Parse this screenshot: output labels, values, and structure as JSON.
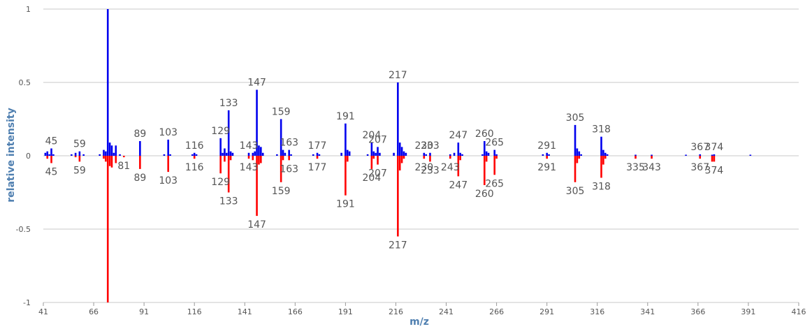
{
  "chart_data": {
    "type": "bar",
    "title": "",
    "xlabel": "m/z",
    "ylabel": "relative intensity",
    "xlim": [
      41,
      416
    ],
    "ylim": [
      -1,
      1
    ],
    "x_ticks": [
      41,
      66,
      91,
      116,
      141,
      166,
      191,
      216,
      241,
      266,
      291,
      316,
      341,
      366,
      391,
      416
    ],
    "y_ticks": [
      {
        "value": 1,
        "label": "1"
      },
      {
        "value": 0.5,
        "label": "0.5"
      },
      {
        "value": 0,
        "label": "0"
      },
      {
        "value": -0.5,
        "label": "-0.5"
      },
      {
        "value": -1,
        "label": "-1"
      }
    ],
    "grid": true,
    "colors": {
      "top": "#0000ee",
      "bottom": "#ff0000",
      "grid": "#c8c8c8",
      "axis_title": "#4f7fb0"
    },
    "series": [
      {
        "direction": "up",
        "peaks": [
          {
            "mz": 42,
            "v": 0.02
          },
          {
            "mz": 43,
            "v": 0.03
          },
          {
            "mz": 44,
            "v": 0.01
          },
          {
            "mz": 45,
            "v": 0.05
          },
          {
            "mz": 46,
            "v": 0.01
          },
          {
            "mz": 55,
            "v": 0.01
          },
          {
            "mz": 57,
            "v": 0.02
          },
          {
            "mz": 59,
            "v": 0.03
          },
          {
            "mz": 61,
            "v": 0.01
          },
          {
            "mz": 69,
            "v": 0.01
          },
          {
            "mz": 71,
            "v": 0.04
          },
          {
            "mz": 72,
            "v": 0.03
          },
          {
            "mz": 73,
            "v": 1.0
          },
          {
            "mz": 74,
            "v": 0.09
          },
          {
            "mz": 75,
            "v": 0.07
          },
          {
            "mz": 76,
            "v": 0.02
          },
          {
            "mz": 77,
            "v": 0.07
          },
          {
            "mz": 79,
            "v": 0.01
          },
          {
            "mz": 89,
            "v": 0.1
          },
          {
            "mz": 101,
            "v": 0.01
          },
          {
            "mz": 103,
            "v": 0.11
          },
          {
            "mz": 104,
            "v": 0.01
          },
          {
            "mz": 115,
            "v": 0.01
          },
          {
            "mz": 116,
            "v": 0.02
          },
          {
            "mz": 117,
            "v": 0.01
          },
          {
            "mz": 129,
            "v": 0.12
          },
          {
            "mz": 130,
            "v": 0.02
          },
          {
            "mz": 131,
            "v": 0.05
          },
          {
            "mz": 132,
            "v": 0.02
          },
          {
            "mz": 133,
            "v": 0.31
          },
          {
            "mz": 134,
            "v": 0.03
          },
          {
            "mz": 135,
            "v": 0.02
          },
          {
            "mz": 143,
            "v": 0.02
          },
          {
            "mz": 145,
            "v": 0.02
          },
          {
            "mz": 146,
            "v": 0.03
          },
          {
            "mz": 147,
            "v": 0.45
          },
          {
            "mz": 148,
            "v": 0.07
          },
          {
            "mz": 149,
            "v": 0.06
          },
          {
            "mz": 150,
            "v": 0.02
          },
          {
            "mz": 157,
            "v": 0.01
          },
          {
            "mz": 159,
            "v": 0.25
          },
          {
            "mz": 160,
            "v": 0.04
          },
          {
            "mz": 161,
            "v": 0.02
          },
          {
            "mz": 163,
            "v": 0.04
          },
          {
            "mz": 164,
            "v": 0.01
          },
          {
            "mz": 175,
            "v": 0.01
          },
          {
            "mz": 177,
            "v": 0.02
          },
          {
            "mz": 178,
            "v": 0.01
          },
          {
            "mz": 189,
            "v": 0.02
          },
          {
            "mz": 191,
            "v": 0.22
          },
          {
            "mz": 192,
            "v": 0.04
          },
          {
            "mz": 193,
            "v": 0.03
          },
          {
            "mz": 202,
            "v": 0.01
          },
          {
            "mz": 204,
            "v": 0.09
          },
          {
            "mz": 205,
            "v": 0.03
          },
          {
            "mz": 206,
            "v": 0.02
          },
          {
            "mz": 207,
            "v": 0.06
          },
          {
            "mz": 208,
            "v": 0.02
          },
          {
            "mz": 215,
            "v": 0.02
          },
          {
            "mz": 217,
            "v": 0.5
          },
          {
            "mz": 218,
            "v": 0.09
          },
          {
            "mz": 219,
            "v": 0.06
          },
          {
            "mz": 220,
            "v": 0.03
          },
          {
            "mz": 221,
            "v": 0.02
          },
          {
            "mz": 230,
            "v": 0.02
          },
          {
            "mz": 231,
            "v": 0.01
          },
          {
            "mz": 233,
            "v": 0.02
          },
          {
            "mz": 243,
            "v": 0.01
          },
          {
            "mz": 245,
            "v": 0.02
          },
          {
            "mz": 247,
            "v": 0.09
          },
          {
            "mz": 248,
            "v": 0.02
          },
          {
            "mz": 249,
            "v": 0.01
          },
          {
            "mz": 259,
            "v": 0.01
          },
          {
            "mz": 260,
            "v": 0.1
          },
          {
            "mz": 261,
            "v": 0.03
          },
          {
            "mz": 262,
            "v": 0.02
          },
          {
            "mz": 265,
            "v": 0.04
          },
          {
            "mz": 266,
            "v": 0.01
          },
          {
            "mz": 289,
            "v": 0.01
          },
          {
            "mz": 291,
            "v": 0.02
          },
          {
            "mz": 292,
            "v": 0.01
          },
          {
            "mz": 305,
            "v": 0.21
          },
          {
            "mz": 306,
            "v": 0.05
          },
          {
            "mz": 307,
            "v": 0.03
          },
          {
            "mz": 308,
            "v": 0.01
          },
          {
            "mz": 318,
            "v": 0.13
          },
          {
            "mz": 319,
            "v": 0.04
          },
          {
            "mz": 320,
            "v": 0.02
          },
          {
            "mz": 321,
            "v": 0.01
          },
          {
            "mz": 335,
            "v": 0.005
          },
          {
            "mz": 343,
            "v": 0.005
          },
          {
            "mz": 360,
            "v": 0.005
          },
          {
            "mz": 367,
            "v": 0.01
          },
          {
            "mz": 373,
            "v": 0.005
          },
          {
            "mz": 374,
            "v": 0.01
          },
          {
            "mz": 392,
            "v": 0.005
          }
        ]
      },
      {
        "direction": "down",
        "peaks": [
          {
            "mz": 43,
            "v": -0.02
          },
          {
            "mz": 45,
            "v": -0.05
          },
          {
            "mz": 57,
            "v": -0.01
          },
          {
            "mz": 59,
            "v": -0.04
          },
          {
            "mz": 71,
            "v": -0.02
          },
          {
            "mz": 72,
            "v": -0.04
          },
          {
            "mz": 73,
            "v": -1.0
          },
          {
            "mz": 74,
            "v": -0.07
          },
          {
            "mz": 75,
            "v": -0.08
          },
          {
            "mz": 77,
            "v": -0.05
          },
          {
            "mz": 81,
            "v": -0.01
          },
          {
            "mz": 89,
            "v": -0.09
          },
          {
            "mz": 103,
            "v": -0.11
          },
          {
            "mz": 116,
            "v": -0.02
          },
          {
            "mz": 129,
            "v": -0.12
          },
          {
            "mz": 131,
            "v": -0.04
          },
          {
            "mz": 133,
            "v": -0.25
          },
          {
            "mz": 134,
            "v": -0.03
          },
          {
            "mz": 143,
            "v": -0.02
          },
          {
            "mz": 145,
            "v": -0.03
          },
          {
            "mz": 147,
            "v": -0.41
          },
          {
            "mz": 148,
            "v": -0.06
          },
          {
            "mz": 149,
            "v": -0.05
          },
          {
            "mz": 159,
            "v": -0.18
          },
          {
            "mz": 160,
            "v": -0.03
          },
          {
            "mz": 163,
            "v": -0.03
          },
          {
            "mz": 177,
            "v": -0.02
          },
          {
            "mz": 191,
            "v": -0.27
          },
          {
            "mz": 192,
            "v": -0.04
          },
          {
            "mz": 204,
            "v": -0.09
          },
          {
            "mz": 205,
            "v": -0.02
          },
          {
            "mz": 207,
            "v": -0.06
          },
          {
            "mz": 217,
            "v": -0.55
          },
          {
            "mz": 218,
            "v": -0.1
          },
          {
            "mz": 219,
            "v": -0.05
          },
          {
            "mz": 220,
            "v": -0.02
          },
          {
            "mz": 230,
            "v": -0.02
          },
          {
            "mz": 233,
            "v": -0.04
          },
          {
            "mz": 243,
            "v": -0.02
          },
          {
            "mz": 247,
            "v": -0.14
          },
          {
            "mz": 248,
            "v": -0.03
          },
          {
            "mz": 260,
            "v": -0.2
          },
          {
            "mz": 261,
            "v": -0.04
          },
          {
            "mz": 265,
            "v": -0.13
          },
          {
            "mz": 266,
            "v": -0.02
          },
          {
            "mz": 291,
            "v": -0.02
          },
          {
            "mz": 305,
            "v": -0.18
          },
          {
            "mz": 306,
            "v": -0.05
          },
          {
            "mz": 307,
            "v": -0.02
          },
          {
            "mz": 318,
            "v": -0.15
          },
          {
            "mz": 319,
            "v": -0.06
          },
          {
            "mz": 320,
            "v": -0.02
          },
          {
            "mz": 335,
            "v": -0.02
          },
          {
            "mz": 343,
            "v": -0.02
          },
          {
            "mz": 367,
            "v": -0.02
          },
          {
            "mz": 373,
            "v": -0.04
          },
          {
            "mz": 374,
            "v": -0.04
          }
        ]
      }
    ],
    "annotations_top": [
      {
        "text": "45",
        "mz": 45,
        "v": 0.05
      },
      {
        "text": "59",
        "mz": 59,
        "v": 0.03
      },
      {
        "text": "89",
        "mz": 89,
        "v": 0.1
      },
      {
        "text": "103",
        "mz": 103,
        "v": 0.11
      },
      {
        "text": "116",
        "mz": 116,
        "v": 0.02
      },
      {
        "text": "129",
        "mz": 129,
        "v": 0.12
      },
      {
        "text": "133",
        "mz": 133,
        "v": 0.31
      },
      {
        "text": "143",
        "mz": 143,
        "v": 0.02
      },
      {
        "text": "147",
        "mz": 147,
        "v": 0.45
      },
      {
        "text": "159",
        "mz": 159,
        "v": 0.25
      },
      {
        "text": "163",
        "mz": 163,
        "v": 0.04
      },
      {
        "text": "177",
        "mz": 177,
        "v": 0.02
      },
      {
        "text": "191",
        "mz": 191,
        "v": 0.22
      },
      {
        "text": "204",
        "mz": 204,
        "v": 0.09
      },
      {
        "text": "207",
        "mz": 207,
        "v": 0.06
      },
      {
        "text": "217",
        "mz": 217,
        "v": 0.5
      },
      {
        "text": "230",
        "mz": 230,
        "v": 0.02
      },
      {
        "text": "233",
        "mz": 233,
        "v": 0.02
      },
      {
        "text": "247",
        "mz": 247,
        "v": 0.09
      },
      {
        "text": "260",
        "mz": 260,
        "v": 0.1
      },
      {
        "text": "265",
        "mz": 265,
        "v": 0.04
      },
      {
        "text": "291",
        "mz": 291,
        "v": 0.02
      },
      {
        "text": "305",
        "mz": 305,
        "v": 0.21
      },
      {
        "text": "318",
        "mz": 318,
        "v": 0.13
      },
      {
        "text": "367",
        "mz": 367,
        "v": 0.01
      },
      {
        "text": "374",
        "mz": 374,
        "v": 0.01
      }
    ],
    "annotations_bottom": [
      {
        "text": "45",
        "mz": 45,
        "v": -0.05
      },
      {
        "text": "59",
        "mz": 59,
        "v": -0.04
      },
      {
        "text": "81",
        "mz": 81,
        "v": -0.01
      },
      {
        "text": "89",
        "mz": 89,
        "v": -0.09
      },
      {
        "text": "103",
        "mz": 103,
        "v": -0.11
      },
      {
        "text": "116",
        "mz": 116,
        "v": -0.02
      },
      {
        "text": "129",
        "mz": 129,
        "v": -0.12
      },
      {
        "text": "133",
        "mz": 133,
        "v": -0.25
      },
      {
        "text": "143",
        "mz": 143,
        "v": -0.02
      },
      {
        "text": "147",
        "mz": 147,
        "v": -0.41
      },
      {
        "text": "159",
        "mz": 159,
        "v": -0.18
      },
      {
        "text": "163",
        "mz": 163,
        "v": -0.03
      },
      {
        "text": "177",
        "mz": 177,
        "v": -0.02
      },
      {
        "text": "191",
        "mz": 191,
        "v": -0.27
      },
      {
        "text": "204",
        "mz": 204,
        "v": -0.09
      },
      {
        "text": "207",
        "mz": 207,
        "v": -0.06
      },
      {
        "text": "217",
        "mz": 217,
        "v": -0.55
      },
      {
        "text": "230",
        "mz": 230,
        "v": -0.02
      },
      {
        "text": "233",
        "mz": 233,
        "v": -0.04
      },
      {
        "text": "243",
        "mz": 243,
        "v": -0.02
      },
      {
        "text": "247",
        "mz": 247,
        "v": -0.14
      },
      {
        "text": "260",
        "mz": 260,
        "v": -0.2
      },
      {
        "text": "265",
        "mz": 265,
        "v": -0.13
      },
      {
        "text": "291",
        "mz": 291,
        "v": -0.02
      },
      {
        "text": "305",
        "mz": 305,
        "v": -0.18
      },
      {
        "text": "318",
        "mz": 318,
        "v": -0.15
      },
      {
        "text": "335",
        "mz": 335,
        "v": -0.02
      },
      {
        "text": "343",
        "mz": 343,
        "v": -0.02
      },
      {
        "text": "367",
        "mz": 367,
        "v": -0.02
      },
      {
        "text": "374",
        "mz": 374,
        "v": -0.04
      }
    ]
  }
}
